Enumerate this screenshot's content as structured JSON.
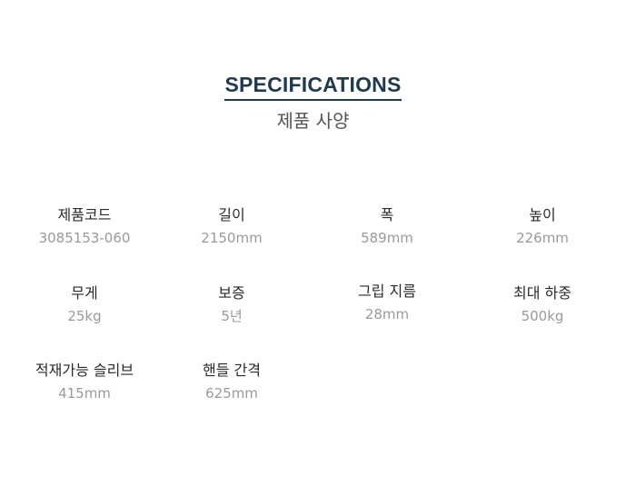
{
  "section": {
    "title": "SPECIFICATIONS",
    "subtitle": "제품 사양"
  },
  "specs": [
    {
      "label": "제품코드",
      "value": "3085153-060"
    },
    {
      "label": "길이",
      "value": "2150mm"
    },
    {
      "label": "폭",
      "value": "589mm"
    },
    {
      "label": "높이",
      "value": "226mm"
    },
    {
      "label": "무게",
      "value": "25kg"
    },
    {
      "label": "보증",
      "value": "5년"
    },
    {
      "label": "그립 지름",
      "value": "28mm"
    },
    {
      "label": "최대 하중",
      "value": "500kg"
    },
    {
      "label": "적재가능 슬리브",
      "value": "415mm"
    },
    {
      "label": "핸들 간격",
      "value": "625mm"
    }
  ],
  "colors": {
    "heading": "#1f3a4d",
    "label": "#2a2a2a",
    "value": "#9a9a9a"
  }
}
